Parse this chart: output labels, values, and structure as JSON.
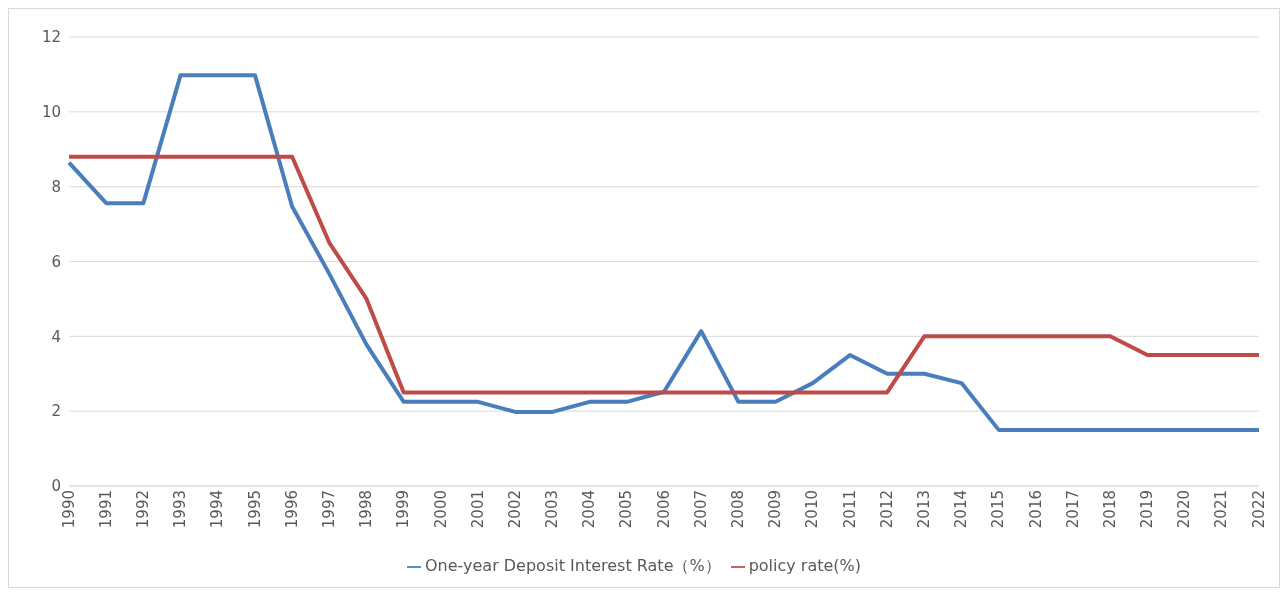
{
  "chart_data": {
    "type": "line",
    "categories": [
      "1990",
      "1991",
      "1992",
      "1993",
      "1994",
      "1995",
      "1996",
      "1997",
      "1998",
      "1999",
      "2000",
      "2001",
      "2002",
      "2003",
      "2004",
      "2005",
      "2006",
      "2007",
      "2008",
      "2009",
      "2010",
      "2011",
      "2012",
      "2013",
      "2014",
      "2015",
      "2016",
      "2017",
      "2018",
      "2019",
      "2020",
      "2021",
      "2022"
    ],
    "series": [
      {
        "name": "One-year Deposit Interest Rate（%）",
        "color": "#4a7ebb",
        "values": [
          8.64,
          7.56,
          7.56,
          10.98,
          10.98,
          10.98,
          7.47,
          5.67,
          3.78,
          2.25,
          2.25,
          2.25,
          1.98,
          1.98,
          2.25,
          2.25,
          2.52,
          4.14,
          2.25,
          2.25,
          2.75,
          3.5,
          3.0,
          3.0,
          2.75,
          1.5,
          1.5,
          1.5,
          1.5,
          1.5,
          1.5,
          1.5,
          1.5
        ]
      },
      {
        "name": "policy rate(%)",
        "color": "#be4b48",
        "values": [
          8.8,
          8.8,
          8.8,
          8.8,
          8.8,
          8.8,
          8.8,
          6.5,
          5.0,
          2.5,
          2.5,
          2.5,
          2.5,
          2.5,
          2.5,
          2.5,
          2.5,
          2.5,
          2.5,
          2.5,
          2.5,
          2.5,
          2.5,
          4.0,
          4.0,
          4.0,
          4.0,
          4.0,
          4.0,
          3.5,
          3.5,
          3.5,
          3.5
        ]
      }
    ],
    "ylim": [
      0,
      12
    ],
    "yticks": [
      0,
      2,
      4,
      6,
      8,
      10,
      12
    ],
    "grid": "y",
    "legend": "bottom",
    "marker": "none",
    "line_style": "solid"
  }
}
